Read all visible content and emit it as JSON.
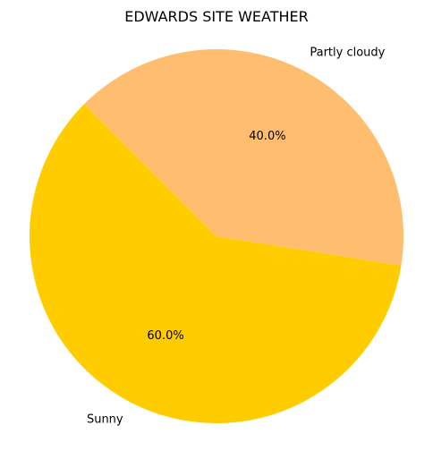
{
  "chart_data": {
    "type": "pie",
    "title": "EDWARDS SITE WEATHER",
    "slices": [
      {
        "label": "Sunny",
        "value": 60.0,
        "pct_label": "60.0%",
        "color": "#ffcc00"
      },
      {
        "label": "Partly cloudy",
        "value": 40.0,
        "pct_label": "40.0%",
        "color": "#ffbe6f"
      }
    ]
  }
}
